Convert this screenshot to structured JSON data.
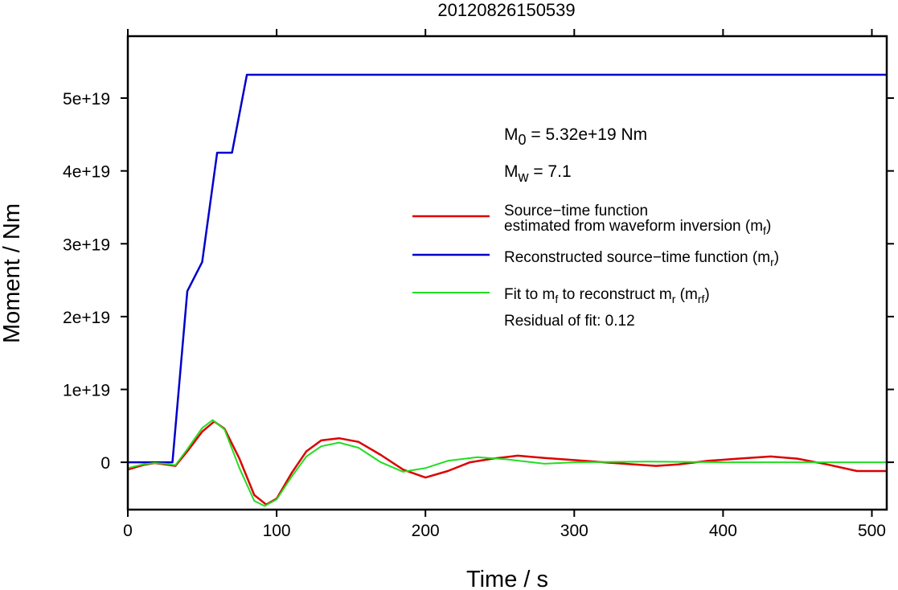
{
  "chart_data": {
    "type": "line",
    "title": "20120826150539",
    "xlabel": "Time / s",
    "ylabel": "Moment / Nm",
    "xlim": [
      0,
      510
    ],
    "ylim": [
      -6.5e+18,
      5.85e+19
    ],
    "x_ticks": [
      0,
      100,
      200,
      300,
      400,
      500
    ],
    "x_tick_labels": [
      "0",
      "100",
      "200",
      "300",
      "400",
      "500"
    ],
    "y_ticks": [
      0,
      1e+19,
      2e+19,
      3e+19,
      4e+19,
      5e+19
    ],
    "y_tick_labels": [
      "0",
      "1e+19",
      "2e+19",
      "3e+19",
      "4e+19",
      "5e+19"
    ],
    "grid": false,
    "legend_position": "right",
    "annotations": {
      "m0_prefix": "M",
      "m0_sub": "0",
      "m0_text": " = 5.32e+19 Nm",
      "mw_prefix": "M",
      "mw_sub": "w",
      "mw_text": " = 7.1",
      "residual": "Residual of fit: 0.12"
    },
    "legend": {
      "red_line1": "Source−time function",
      "red_line2": "estimated from waveform inversion (m",
      "red_line2_sub": "f",
      "red_line2_end": ")",
      "blue_text": "Reconstructed source−time function (m",
      "blue_sub": "r",
      "blue_end": ")",
      "green_a": "Fit to m",
      "green_a_sub": "f",
      "green_b": " to reconstruct m",
      "green_b_sub": "r",
      "green_c": " (m",
      "green_c_sub": "rf",
      "green_d": ")"
    },
    "series": [
      {
        "color": "#0000cc",
        "x": [
          0,
          30,
          40,
          50,
          60,
          70,
          80,
          90,
          200,
          300,
          400,
          510
        ],
        "y": [
          0,
          0,
          2.35e+19,
          2.75e+19,
          4.25e+19,
          4.25e+19,
          5.32e+19,
          5.32e+19,
          5.32e+19,
          5.32e+19,
          5.32e+19,
          5.32e+19
        ]
      },
      {
        "color": "#dd0000",
        "x": [
          0,
          10,
          18,
          25,
          32,
          40,
          50,
          58,
          65,
          75,
          85,
          93,
          100,
          110,
          120,
          130,
          142,
          155,
          170,
          185,
          200,
          215,
          230,
          245,
          262,
          280,
          300,
          320,
          340,
          355,
          370,
          390,
          410,
          432,
          450,
          470,
          490,
          510
        ],
        "y": [
          -1e+18,
          -4e+17,
          -1e+17,
          -3e+17,
          -5e+17,
          1.5e+18,
          4.2e+18,
          5.6e+18,
          4.6e+18,
          5e+17,
          -4.5e+18,
          -5.8e+18,
          -5e+18,
          -1.5e+18,
          1.5e+18,
          3e+18,
          3.3e+18,
          2.8e+18,
          1e+18,
          -1e+18,
          -2.1e+18,
          -1.2e+18,
          0,
          5e+17,
          9e+17,
          6e+17,
          3e+17,
          0,
          -3e+17,
          -5e+17,
          -3e+17,
          2e+17,
          5e+17,
          8e+17,
          5e+17,
          -3e+17,
          -1.2e+18,
          -1.2e+18
        ]
      },
      {
        "color": "#22dd22",
        "x": [
          0,
          10,
          18,
          25,
          32,
          40,
          50,
          57,
          65,
          75,
          85,
          92,
          100,
          110,
          120,
          130,
          142,
          155,
          170,
          185,
          200,
          215,
          235,
          255,
          280,
          300,
          350,
          400,
          450,
          510
        ],
        "y": [
          -8e+17,
          -3e+17,
          -1e+17,
          -2e+17,
          -4e+17,
          1.8e+18,
          4.7e+18,
          5.8e+18,
          4.5e+18,
          -8e+17,
          -5.3e+18,
          -6e+18,
          -5.1e+18,
          -2e+18,
          8e+17,
          2.2e+18,
          2.7e+18,
          2e+18,
          0,
          -1.3e+18,
          -8e+17,
          2e+17,
          7e+17,
          4e+17,
          -2e+17,
          0,
          1e+17,
          0,
          0,
          0
        ]
      }
    ]
  }
}
